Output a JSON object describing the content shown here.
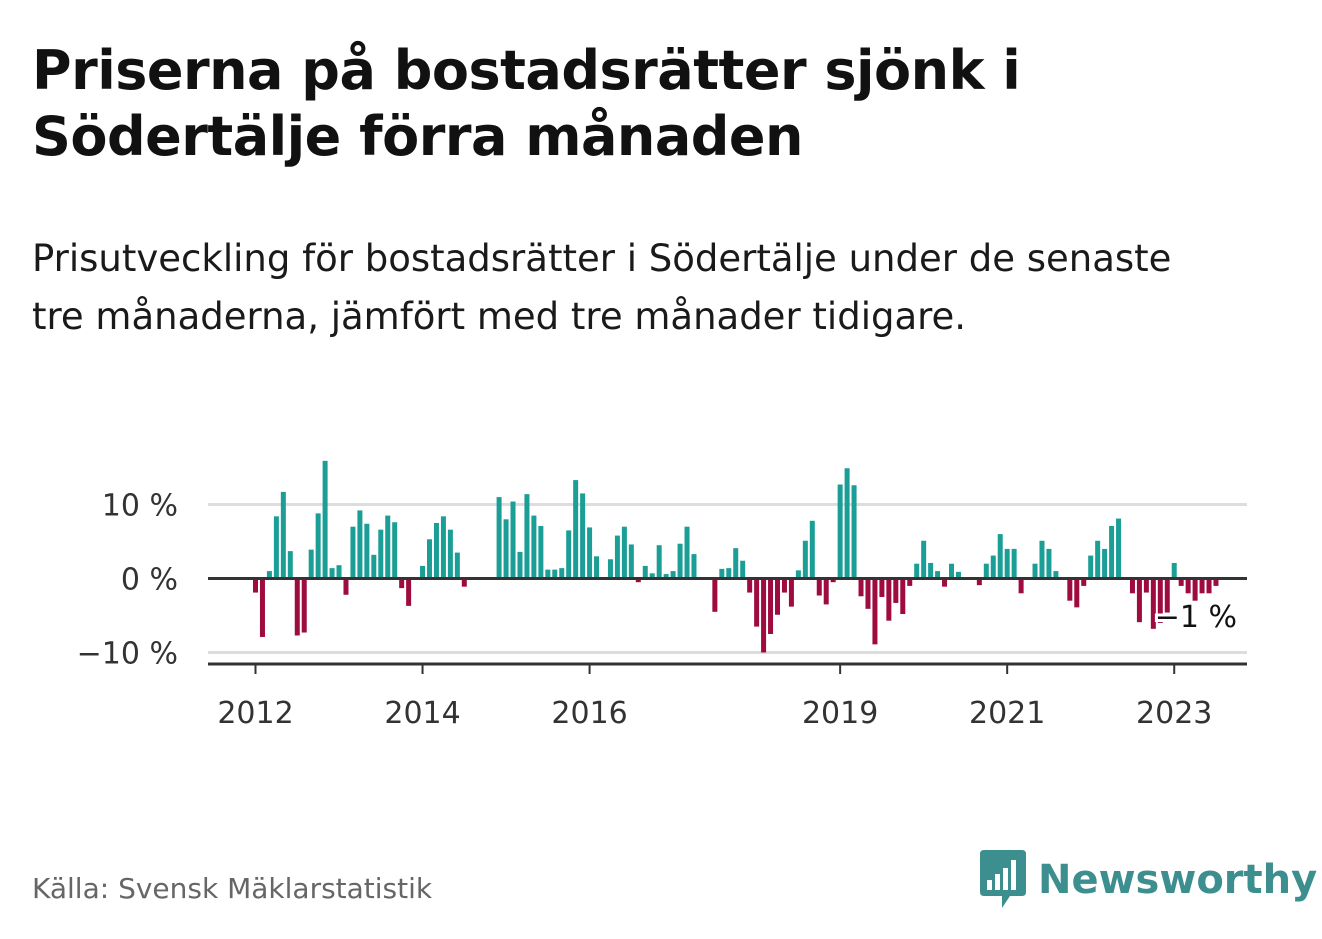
{
  "header": {
    "title": "Priserna på bostadsrätter sjönk i Södertälje förra månaden",
    "subtitle": "Prisutveckling för bostadsrätter i Södertälje under de senaste tre månaderna, jämfört med tre månader tidigare."
  },
  "footer": {
    "source": "Källa: Svensk Mäklarstatistik",
    "brand": "Newsworthy",
    "brand_icon": "bar-chart-logo-icon"
  },
  "colors": {
    "positive": "#1a9e96",
    "negative": "#9e0b3f",
    "grid": "#dddddd",
    "axis": "#333333",
    "brand": "#3d8f8f"
  },
  "chart_data": {
    "type": "bar",
    "title": "Priserna på bostadsrätter sjönk i Södertälje förra månaden",
    "subtitle": "Prisutveckling för bostadsrätter i Södertälje under de senaste tre månaderna, jämfört med tre månader tidigare.",
    "xlabel": "",
    "ylabel": "",
    "unit": "%",
    "ylim": [
      -11,
      12.5
    ],
    "yticks": [
      {
        "value": 10,
        "label": "10 %"
      },
      {
        "value": 0,
        "label": "0 %"
      },
      {
        "value": -10,
        "label": "−10 %"
      }
    ],
    "xticks": [
      {
        "index": 0,
        "label": "2012"
      },
      {
        "index": 24,
        "label": "2014"
      },
      {
        "index": 48,
        "label": "2016"
      },
      {
        "index": 84,
        "label": "2019"
      },
      {
        "index": 108,
        "label": "2021"
      },
      {
        "index": 132,
        "label": "2023"
      }
    ],
    "period": "monthly, Oct 2011 – Apr 2023",
    "last_value_label": "−1 %",
    "values": [
      -1.9,
      -7.9,
      1.0,
      8.4,
      11.7,
      3.7,
      -7.7,
      -7.3,
      3.9,
      8.8,
      15.9,
      1.4,
      1.8,
      -2.2,
      7.0,
      9.2,
      7.4,
      3.2,
      6.6,
      8.5,
      7.6,
      -1.3,
      -3.7,
      0.0,
      1.7,
      5.3,
      7.5,
      8.4,
      6.6,
      3.5,
      -1.1,
      0.0,
      0.0,
      0.0,
      0.0,
      11.0,
      8.0,
      10.4,
      3.6,
      11.4,
      8.5,
      7.1,
      1.2,
      1.2,
      1.4,
      6.5,
      13.3,
      11.5,
      6.9,
      3.0,
      0.0,
      2.6,
      5.8,
      7.0,
      4.6,
      -0.5,
      1.7,
      0.7,
      4.5,
      0.6,
      1.0,
      4.7,
      7.0,
      3.3,
      0.0,
      0.0,
      -4.5,
      1.3,
      1.4,
      4.1,
      2.4,
      -1.9,
      -6.5,
      -10.0,
      -7.5,
      -4.9,
      -1.9,
      -3.8,
      1.1,
      5.1,
      7.8,
      -2.3,
      -3.5,
      -0.5,
      12.7,
      14.9,
      12.6,
      -2.4,
      -4.1,
      -8.9,
      -2.5,
      -5.7,
      -3.3,
      -4.8,
      -1.0,
      2.0,
      5.1,
      2.1,
      1.0,
      -1.1,
      2.0,
      0.9,
      0.0,
      0.0,
      -0.9,
      2.0,
      3.1,
      6.0,
      4.0,
      4.0,
      -2.0,
      0.0,
      2.0,
      5.1,
      4.0,
      1.0,
      0.0,
      -3.0,
      -3.9,
      -1.0,
      3.1,
      5.1,
      4.0,
      7.1,
      8.1,
      0.0,
      -2.0,
      -5.9,
      -1.9,
      -6.8,
      -6.0,
      -4.6,
      2.1,
      -1.0,
      -2.0,
      -3.0,
      -2.0,
      -2.0,
      -1.0
    ]
  }
}
